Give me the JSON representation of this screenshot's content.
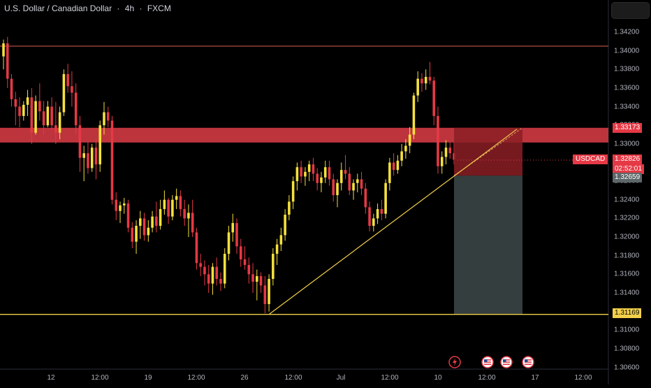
{
  "header": {
    "symbol_name": "U.S. Dollar / Canadian Dollar",
    "separator": "·",
    "timeframe": "4h",
    "exchange": "FXCM"
  },
  "price_axis": {
    "ticks": [
      "1.34200",
      "1.34000",
      "1.33800",
      "1.33600",
      "1.33400",
      "1.33200",
      "1.33000",
      "1.32800",
      "1.32600",
      "1.32400",
      "1.32200",
      "1.32000",
      "1.31800",
      "1.31600",
      "1.31400",
      "1.31200",
      "1.31000",
      "1.30800",
      "1.30600"
    ]
  },
  "time_axis": {
    "labels": [
      "12",
      "12:00",
      "19",
      "12:00",
      "26",
      "12:00",
      "Jul",
      "12:00",
      "10",
      "12:00",
      "17",
      "12:00"
    ]
  },
  "tags": {
    "resistance_price": "1.33173",
    "symbol": "USDCAD",
    "current_price": "1.32826",
    "countdown": "02:52:01",
    "entry_price": "1.32659",
    "support_price": "1.31169"
  },
  "events": {
    "icons": [
      "lightning-icon",
      "us-flag-icon",
      "us-flag-icon",
      "us-flag-icon"
    ]
  },
  "colors": {
    "background": "#000000",
    "bull": "#f5e13c",
    "bear": "#e53945",
    "resistance_zone": "#d13a44",
    "support_line": "#f2d04a",
    "top_line": "#b14a46",
    "stop_zone": "#8b1e25",
    "target_zone": "#3b4546"
  },
  "chart_data": {
    "type": "candlestick",
    "symbol": "U.S. Dollar / Canadian Dollar",
    "interval": "4h",
    "ylim": [
      1.3055,
      1.3434
    ],
    "horizontal_levels": [
      1.3405,
      1.31169
    ],
    "resistance_zone": [
      1.33015,
      1.33173
    ],
    "trendline": {
      "from": 1.31169,
      "to": 1.33173
    },
    "position": {
      "entry": 1.32659,
      "stop": 1.33173,
      "target": 1.31169
    },
    "last_price": 1.32826,
    "candles": [
      [
        1.3394,
        1.3412,
        1.338,
        1.3408
      ],
      [
        1.3408,
        1.3415,
        1.336,
        1.337
      ],
      [
        1.337,
        1.3375,
        1.334,
        1.3348
      ],
      [
        1.3348,
        1.3356,
        1.332,
        1.334
      ],
      [
        1.334,
        1.335,
        1.3318,
        1.333
      ],
      [
        1.333,
        1.3346,
        1.3325,
        1.3342
      ],
      [
        1.3342,
        1.3358,
        1.333,
        1.335
      ],
      [
        1.335,
        1.336,
        1.33,
        1.3312
      ],
      [
        1.3312,
        1.3352,
        1.331,
        1.3346
      ],
      [
        1.3346,
        1.3365,
        1.3325,
        1.3335
      ],
      [
        1.3335,
        1.3346,
        1.331,
        1.332
      ],
      [
        1.332,
        1.3346,
        1.3318,
        1.334
      ],
      [
        1.334,
        1.335,
        1.3315,
        1.332
      ],
      [
        1.332,
        1.3345,
        1.33,
        1.3312
      ],
      [
        1.3312,
        1.334,
        1.3305,
        1.3334
      ],
      [
        1.3334,
        1.338,
        1.333,
        1.3375
      ],
      [
        1.3375,
        1.3386,
        1.3355,
        1.3362
      ],
      [
        1.3362,
        1.3378,
        1.334,
        1.3355
      ],
      [
        1.3355,
        1.3365,
        1.331,
        1.332
      ],
      [
        1.332,
        1.333,
        1.327,
        1.3285
      ],
      [
        1.3285,
        1.3298,
        1.326,
        1.329
      ],
      [
        1.329,
        1.3302,
        1.3268,
        1.3274
      ],
      [
        1.3274,
        1.33,
        1.327,
        1.3296
      ],
      [
        1.3296,
        1.3305,
        1.3262,
        1.3278
      ],
      [
        1.3278,
        1.3325,
        1.327,
        1.332
      ],
      [
        1.332,
        1.3345,
        1.331,
        1.3334
      ],
      [
        1.3334,
        1.334,
        1.3318,
        1.3325
      ],
      [
        1.3325,
        1.333,
        1.3235,
        1.324
      ],
      [
        1.324,
        1.3248,
        1.3218,
        1.3228
      ],
      [
        1.3228,
        1.3238,
        1.3215,
        1.3234
      ],
      [
        1.3234,
        1.3242,
        1.3225,
        1.3236
      ],
      [
        1.3236,
        1.324,
        1.3205,
        1.321
      ],
      [
        1.321,
        1.3216,
        1.3188,
        1.3195
      ],
      [
        1.3195,
        1.3218,
        1.3182,
        1.3212
      ],
      [
        1.3212,
        1.3228,
        1.3198,
        1.322
      ],
      [
        1.322,
        1.3226,
        1.3196,
        1.3202
      ],
      [
        1.3202,
        1.3218,
        1.3195,
        1.321
      ],
      [
        1.321,
        1.3228,
        1.3205,
        1.3222
      ],
      [
        1.3222,
        1.3238,
        1.3205,
        1.3212
      ],
      [
        1.3212,
        1.324,
        1.3208,
        1.323
      ],
      [
        1.323,
        1.325,
        1.3224,
        1.324
      ],
      [
        1.324,
        1.3242,
        1.3214,
        1.3222
      ],
      [
        1.3222,
        1.3245,
        1.3218,
        1.324
      ],
      [
        1.324,
        1.3252,
        1.323,
        1.3244
      ],
      [
        1.3244,
        1.325,
        1.3222,
        1.323
      ],
      [
        1.323,
        1.324,
        1.3212,
        1.322
      ],
      [
        1.322,
        1.3235,
        1.32,
        1.3226
      ],
      [
        1.3226,
        1.324,
        1.32,
        1.3205
      ],
      [
        1.3205,
        1.321,
        1.3165,
        1.3172
      ],
      [
        1.3172,
        1.3182,
        1.3158,
        1.3168
      ],
      [
        1.3168,
        1.3175,
        1.3148,
        1.316
      ],
      [
        1.316,
        1.317,
        1.314,
        1.315
      ],
      [
        1.315,
        1.3172,
        1.3138,
        1.3168
      ],
      [
        1.3168,
        1.3178,
        1.3148,
        1.3155
      ],
      [
        1.3155,
        1.3162,
        1.3142,
        1.315
      ],
      [
        1.315,
        1.3188,
        1.3145,
        1.3182
      ],
      [
        1.3182,
        1.3212,
        1.3175,
        1.3205
      ],
      [
        1.3205,
        1.3225,
        1.3195,
        1.3215
      ],
      [
        1.3215,
        1.322,
        1.3182,
        1.319
      ],
      [
        1.319,
        1.3198,
        1.3168,
        1.3176
      ],
      [
        1.3176,
        1.319,
        1.3165,
        1.317
      ],
      [
        1.317,
        1.3178,
        1.315,
        1.316
      ],
      [
        1.316,
        1.3172,
        1.314,
        1.3152
      ],
      [
        1.3152,
        1.3165,
        1.3132,
        1.3158
      ],
      [
        1.3158,
        1.3162,
        1.314,
        1.3148
      ],
      [
        1.3148,
        1.3158,
        1.3118,
        1.3128
      ],
      [
        1.3128,
        1.316,
        1.312,
        1.3155
      ],
      [
        1.3155,
        1.3188,
        1.3148,
        1.3182
      ],
      [
        1.3182,
        1.3198,
        1.317,
        1.3192
      ],
      [
        1.3192,
        1.321,
        1.3185,
        1.3202
      ],
      [
        1.3202,
        1.323,
        1.3196,
        1.3224
      ],
      [
        1.3224,
        1.3245,
        1.3218,
        1.3238
      ],
      [
        1.3238,
        1.3265,
        1.323,
        1.326
      ],
      [
        1.326,
        1.328,
        1.325,
        1.3275
      ],
      [
        1.3275,
        1.3282,
        1.3258,
        1.3265
      ],
      [
        1.3265,
        1.3275,
        1.3255,
        1.327
      ],
      [
        1.327,
        1.3282,
        1.326,
        1.3278
      ],
      [
        1.3278,
        1.3285,
        1.326,
        1.3268
      ],
      [
        1.3268,
        1.3274,
        1.325,
        1.3258
      ],
      [
        1.3258,
        1.327,
        1.3248,
        1.3264
      ],
      [
        1.3264,
        1.3282,
        1.3258,
        1.3275
      ],
      [
        1.3275,
        1.3282,
        1.3255,
        1.3262
      ],
      [
        1.3262,
        1.3268,
        1.3238,
        1.3245
      ],
      [
        1.3245,
        1.3262,
        1.3232,
        1.3258
      ],
      [
        1.3258,
        1.328,
        1.325,
        1.3272
      ],
      [
        1.3272,
        1.3288,
        1.3262,
        1.3268
      ],
      [
        1.3268,
        1.3275,
        1.3245,
        1.325
      ],
      [
        1.325,
        1.3262,
        1.324,
        1.3258
      ],
      [
        1.3258,
        1.3268,
        1.3248,
        1.3262
      ],
      [
        1.3262,
        1.327,
        1.3245,
        1.3252
      ],
      [
        1.3252,
        1.3258,
        1.3225,
        1.3232
      ],
      [
        1.3232,
        1.3238,
        1.3206,
        1.3212
      ],
      [
        1.3212,
        1.3225,
        1.3206,
        1.322
      ],
      [
        1.322,
        1.3236,
        1.3214,
        1.323
      ],
      [
        1.323,
        1.324,
        1.3218,
        1.3225
      ],
      [
        1.3225,
        1.3262,
        1.322,
        1.3258
      ],
      [
        1.3258,
        1.3285,
        1.325,
        1.328
      ],
      [
        1.328,
        1.329,
        1.3266,
        1.3272
      ],
      [
        1.3272,
        1.3288,
        1.3268,
        1.3282
      ],
      [
        1.3282,
        1.33,
        1.3276,
        1.3292
      ],
      [
        1.3292,
        1.3305,
        1.3284,
        1.3298
      ],
      [
        1.3298,
        1.3318,
        1.329,
        1.331
      ],
      [
        1.331,
        1.3355,
        1.3305,
        1.3352
      ],
      [
        1.3352,
        1.3378,
        1.3345,
        1.337
      ],
      [
        1.337,
        1.3376,
        1.3356,
        1.3365
      ],
      [
        1.3365,
        1.338,
        1.3358,
        1.3372
      ],
      [
        1.3372,
        1.3388,
        1.3364,
        1.3368
      ],
      [
        1.3368,
        1.3372,
        1.332,
        1.333
      ],
      [
        1.333,
        1.334,
        1.3268,
        1.3276
      ],
      [
        1.3276,
        1.3292,
        1.3268,
        1.3286
      ],
      [
        1.3286,
        1.3304,
        1.3278,
        1.3296
      ],
      [
        1.3296,
        1.3302,
        1.3284,
        1.329
      ],
      [
        1.329,
        1.3302,
        1.3278,
        1.3283
      ]
    ]
  }
}
